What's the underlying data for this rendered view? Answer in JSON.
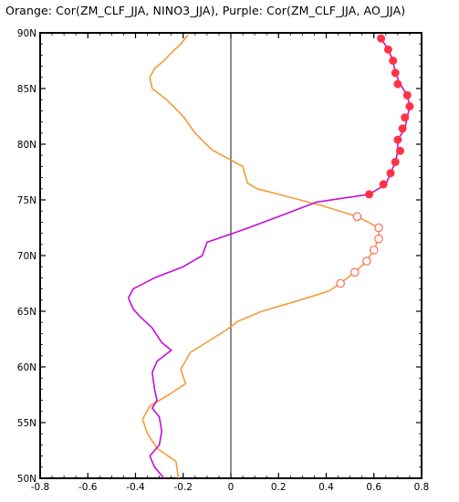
{
  "title": "Orange: Cor(ZM_CLF_JJA, NINO3_JJA), Purple: Cor(ZM_CLF_JJA, AO_JJA)",
  "colors": {
    "orange": "#f39b3a",
    "purple": "#c40fd8",
    "marker_red": "#ff3344",
    "marker_open": "#ff6b5a",
    "zero_line": "#000000"
  },
  "chart_data": {
    "type": "line",
    "title": "Orange: Cor(ZM_CLF_JJA, NINO3_JJA), Purple: Cor(ZM_CLF_JJA, AO_JJA)",
    "xlabel": "",
    "ylabel": "",
    "xlim": [
      -0.8,
      0.8
    ],
    "ylim": [
      50,
      90
    ],
    "x_ticks": [
      "-0.8",
      "-0.6",
      "-0.4",
      "-0.2",
      "0",
      "0.2",
      "0.4",
      "0.6",
      "0.8"
    ],
    "x_tick_values": [
      -0.8,
      -0.6,
      -0.4,
      -0.2,
      0,
      0.2,
      0.4,
      0.6,
      0.8
    ],
    "y_ticks": [
      "50N",
      "55N",
      "60N",
      "65N",
      "70N",
      "75N",
      "80N",
      "85N",
      "90N"
    ],
    "y_tick_values": [
      50,
      55,
      60,
      65,
      70,
      75,
      80,
      85,
      90
    ],
    "grid": false,
    "series": [
      {
        "color_key": "orange",
        "points": [
          [
            -0.22,
            50.0
          ],
          [
            -0.23,
            51.5
          ],
          [
            -0.31,
            52.7
          ],
          [
            -0.35,
            54.0
          ],
          [
            -0.37,
            55.3
          ],
          [
            -0.34,
            56.5
          ],
          [
            -0.26,
            57.5
          ],
          [
            -0.19,
            58.5
          ],
          [
            -0.21,
            59.8
          ],
          [
            -0.17,
            61.3
          ],
          [
            -0.08,
            62.5
          ],
          [
            -0.02,
            63.3
          ],
          [
            0.03,
            64.1
          ],
          [
            0.13,
            65.0
          ],
          [
            0.29,
            66.0
          ],
          [
            0.41,
            66.8
          ],
          [
            0.46,
            67.5
          ],
          [
            0.52,
            68.5
          ],
          [
            0.57,
            69.5
          ],
          [
            0.6,
            70.5
          ],
          [
            0.62,
            71.5
          ],
          [
            0.62,
            72.5
          ],
          [
            0.53,
            73.5
          ],
          [
            0.38,
            74.5
          ],
          [
            0.2,
            75.5
          ],
          [
            0.11,
            76.0
          ],
          [
            0.07,
            76.5
          ],
          [
            0.05,
            78.0
          ],
          [
            -0.02,
            78.8
          ],
          [
            -0.08,
            79.5
          ],
          [
            -0.15,
            81.0
          ],
          [
            -0.2,
            82.5
          ],
          [
            -0.27,
            84.0
          ],
          [
            -0.33,
            85.0
          ],
          [
            -0.34,
            86.0
          ],
          [
            -0.32,
            86.8
          ],
          [
            -0.28,
            87.5
          ],
          [
            -0.25,
            88.2
          ],
          [
            -0.21,
            89.0
          ],
          [
            -0.18,
            89.8
          ]
        ]
      },
      {
        "color_key": "purple",
        "points": [
          [
            -0.28,
            50.0
          ],
          [
            -0.32,
            51.0
          ],
          [
            -0.34,
            52.0
          ],
          [
            -0.3,
            53.0
          ],
          [
            -0.29,
            54.2
          ],
          [
            -0.3,
            55.5
          ],
          [
            -0.33,
            56.3
          ],
          [
            -0.31,
            57.0
          ],
          [
            -0.32,
            58.0
          ],
          [
            -0.33,
            59.5
          ],
          [
            -0.31,
            60.5
          ],
          [
            -0.25,
            61.5
          ],
          [
            -0.29,
            62.2
          ],
          [
            -0.33,
            63.5
          ],
          [
            -0.38,
            64.5
          ],
          [
            -0.41,
            65.2
          ],
          [
            -0.43,
            66.2
          ],
          [
            -0.41,
            67.0
          ],
          [
            -0.32,
            68.0
          ],
          [
            -0.2,
            69.0
          ],
          [
            -0.12,
            70.0
          ],
          [
            -0.1,
            71.2
          ],
          [
            0.05,
            72.3
          ],
          [
            0.2,
            73.5
          ],
          [
            0.36,
            74.8
          ],
          [
            0.58,
            75.5
          ],
          [
            0.65,
            76.4
          ],
          [
            0.67,
            77.4
          ],
          [
            0.69,
            78.4
          ],
          [
            0.7,
            79.4
          ],
          [
            0.7,
            80.4
          ],
          [
            0.73,
            81.4
          ],
          [
            0.74,
            82.4
          ],
          [
            0.75,
            83.4
          ],
          [
            0.74,
            84.4
          ],
          [
            0.71,
            85.4
          ],
          [
            0.69,
            86.4
          ],
          [
            0.68,
            87.5
          ],
          [
            0.66,
            88.5
          ],
          [
            0.63,
            89.5
          ]
        ]
      }
    ],
    "filled_markers": [
      [
        0.58,
        75.5
      ],
      [
        0.64,
        76.4
      ],
      [
        0.67,
        77.4
      ],
      [
        0.69,
        78.4
      ],
      [
        0.71,
        79.4
      ],
      [
        0.7,
        80.4
      ],
      [
        0.72,
        81.4
      ],
      [
        0.73,
        82.4
      ],
      [
        0.75,
        83.4
      ],
      [
        0.74,
        84.4
      ],
      [
        0.7,
        85.4
      ],
      [
        0.69,
        86.4
      ],
      [
        0.68,
        87.5
      ],
      [
        0.66,
        88.5
      ],
      [
        0.63,
        89.5
      ]
    ],
    "open_markers": [
      [
        0.53,
        73.5
      ],
      [
        0.62,
        72.5
      ],
      [
        0.62,
        71.5
      ],
      [
        0.6,
        70.5
      ],
      [
        0.57,
        69.5
      ],
      [
        0.52,
        68.5
      ],
      [
        0.46,
        67.5
      ]
    ]
  }
}
